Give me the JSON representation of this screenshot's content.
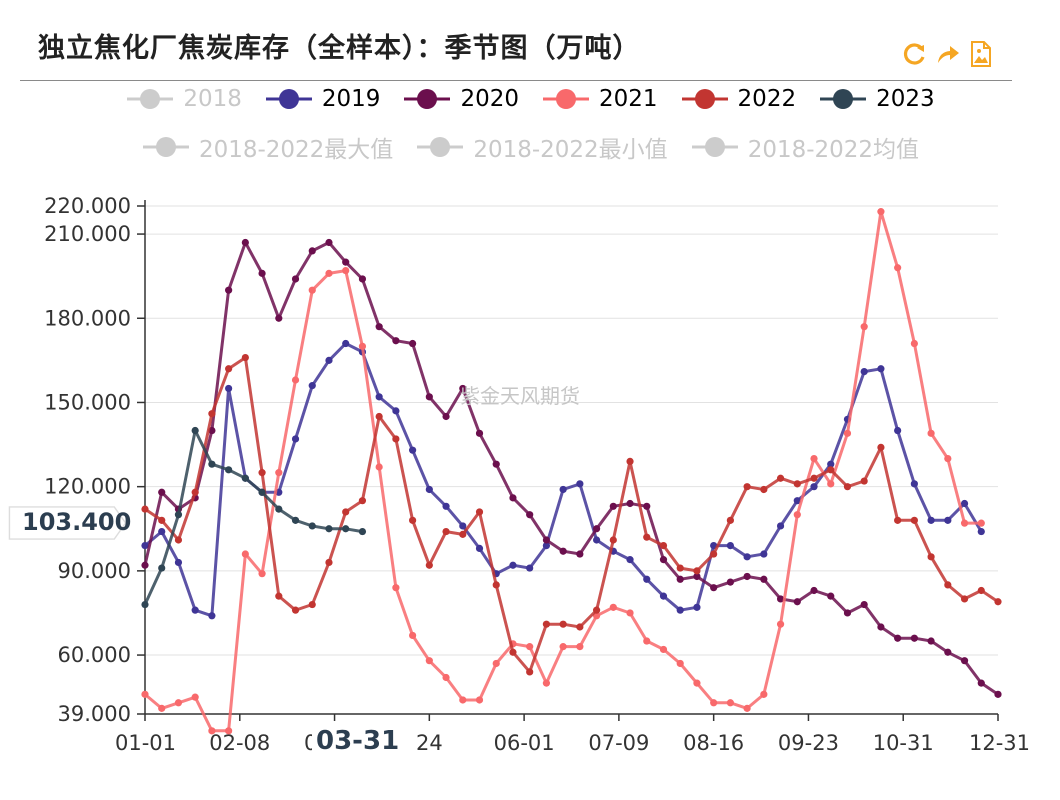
{
  "header": {
    "title": "独立焦化厂焦炭库存（全样本）：季节图（万吨）"
  },
  "toolbox": {
    "icons": [
      "refresh-icon",
      "share-icon",
      "save-image-icon"
    ],
    "color": "#f5a623"
  },
  "watermark": "紫金天风期货",
  "axis_pointer": {
    "y_label": "103.400",
    "x_label": "03-31"
  },
  "chart_data": {
    "type": "line",
    "title": "独立焦化厂焦炭库存（全样本）：季节图（万吨）",
    "xlabel": "",
    "ylabel": "",
    "ylim": [
      39,
      220
    ],
    "x_ticks": [
      "01-01",
      "02-08",
      "03-31",
      "24",
      "06-01",
      "07-09",
      "08-16",
      "09-23",
      "10-31",
      "12-31"
    ],
    "y_ticks": [
      "39.000",
      "60.000",
      "90.000",
      "120.000",
      "150.000",
      "180.000",
      "210.000",
      "220.000"
    ],
    "grid": true,
    "legend_position": "top",
    "series": [
      {
        "name": "2018",
        "color": "#cccccc",
        "visible": false,
        "values": []
      },
      {
        "name": "2019",
        "color": "#3f3596",
        "visible": true,
        "values": [
          99,
          104,
          93,
          76,
          74,
          155,
          123,
          118,
          118,
          137,
          156,
          165,
          171,
          168,
          152,
          147,
          133,
          119,
          113,
          106,
          98,
          89,
          92,
          91,
          99,
          119,
          121,
          101,
          97,
          94,
          87,
          81,
          76,
          77,
          99,
          99,
          95,
          96,
          106,
          115,
          120,
          128,
          144,
          161,
          162,
          140,
          121,
          108,
          108,
          114,
          104
        ]
      },
      {
        "name": "2020",
        "color": "#6b0f4d",
        "visible": true,
        "values": [
          92,
          118,
          112,
          116,
          140,
          190,
          207,
          196,
          180,
          194,
          204,
          207,
          200,
          194,
          177,
          172,
          171,
          152,
          145,
          155,
          139,
          128,
          116,
          110,
          101,
          97,
          96,
          105,
          113,
          114,
          113,
          94,
          87,
          88,
          84,
          86,
          88,
          87,
          80,
          79,
          83,
          81,
          75,
          78,
          70,
          66,
          66,
          65,
          61,
          58,
          50,
          46
        ]
      },
      {
        "name": "2021",
        "color": "#f8696b",
        "visible": true,
        "values": [
          46,
          41,
          43,
          45,
          33,
          33,
          96,
          89,
          125,
          158,
          190,
          196,
          197,
          170,
          127,
          84,
          67,
          58,
          52,
          44,
          44,
          57,
          64,
          63,
          50,
          63,
          63,
          74,
          77,
          75,
          65,
          62,
          57,
          50,
          43,
          43,
          41,
          46,
          71,
          110,
          130,
          121,
          139,
          177,
          218,
          198,
          171,
          139,
          130,
          107,
          107
        ]
      },
      {
        "name": "2022",
        "color": "#c23531",
        "visible": true,
        "values": [
          112,
          108,
          101,
          118,
          146,
          162,
          166,
          125,
          81,
          76,
          78,
          93,
          111,
          115,
          145,
          137,
          108,
          92,
          104,
          103,
          111,
          85,
          61,
          54,
          71,
          71,
          70,
          76,
          101,
          129,
          102,
          99,
          91,
          90,
          96,
          108,
          120,
          119,
          123,
          121,
          123,
          126,
          120,
          122,
          134,
          108,
          108,
          95,
          85,
          80,
          83,
          79
        ]
      },
      {
        "name": "2023",
        "color": "#2f4554",
        "visible": true,
        "values": [
          78,
          91,
          110,
          140,
          128,
          126,
          123,
          118,
          112,
          108,
          106,
          105,
          105,
          104
        ]
      },
      {
        "name": "2018-2022最大值",
        "color": "#cccccc",
        "visible": false,
        "values": []
      },
      {
        "name": "2018-2022最小值",
        "color": "#cccccc",
        "visible": false,
        "values": []
      },
      {
        "name": "2018-2022均值",
        "color": "#cccccc",
        "visible": false,
        "values": []
      }
    ]
  }
}
